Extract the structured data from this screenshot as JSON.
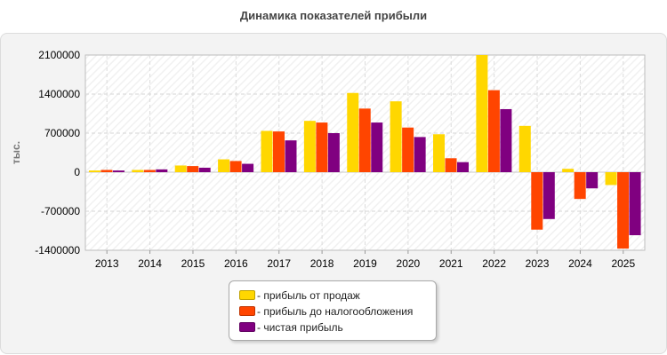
{
  "chart_data": {
    "type": "bar",
    "title": "Динамика показателей прибыли",
    "ylabel": "тыс.",
    "xlabel": "",
    "categories": [
      "2013",
      "2014",
      "2015",
      "2016",
      "2017",
      "2018",
      "2019",
      "2020",
      "2021",
      "2022",
      "2023",
      "2024",
      "2025"
    ],
    "y_ticks": [
      "2100000",
      "1400000",
      "700000",
      "0",
      "-700000",
      "-1400000"
    ],
    "ylim": [
      -1400000,
      2100000
    ],
    "grid": true,
    "legend_position": "bottom",
    "series": [
      {
        "name": "- прибыль от продаж",
        "color": "#FFD700",
        "values": [
          30000,
          40000,
          120000,
          230000,
          740000,
          920000,
          1420000,
          1270000,
          680000,
          2100000,
          830000,
          60000,
          -230000
        ]
      },
      {
        "name": "- прибыль до налогообложения",
        "color": "#FF4500",
        "values": [
          40000,
          40000,
          110000,
          200000,
          730000,
          890000,
          1140000,
          800000,
          250000,
          1470000,
          -1030000,
          -480000,
          -1370000
        ]
      },
      {
        "name": "- чистая прибыль",
        "color": "#800080",
        "values": [
          30000,
          50000,
          80000,
          150000,
          570000,
          700000,
          890000,
          630000,
          180000,
          1130000,
          -840000,
          -290000,
          -1130000
        ]
      }
    ]
  }
}
